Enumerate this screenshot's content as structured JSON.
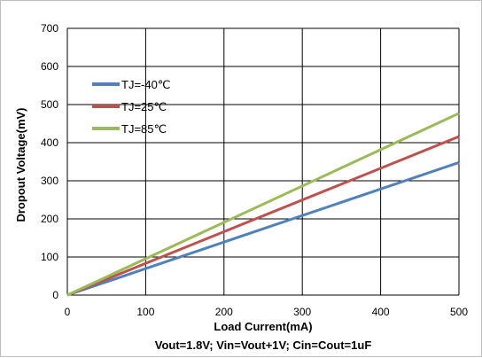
{
  "chart_data": {
    "type": "line",
    "xlabel": "Load Current(mA)",
    "ylabel": "Dropout Voltage(mV)",
    "footnote": "Vout=1.8V; Vin=Vout+1V; Cin=Cout=1uF",
    "xlim": [
      0,
      500
    ],
    "ylim": [
      0,
      700
    ],
    "x_ticks": [
      "0",
      "100",
      "200",
      "300",
      "400",
      "500"
    ],
    "y_ticks": [
      "0",
      "100",
      "200",
      "300",
      "400",
      "500",
      "600",
      "700"
    ],
    "grid": "horizontal-and-vertical",
    "legend_position": "top-left",
    "x": [
      0,
      500
    ],
    "series": [
      {
        "name": "TJ=-40℃",
        "color": "#4f81bd",
        "values": [
          0,
          348
        ]
      },
      {
        "name": "TJ=25℃",
        "color": "#c0504d",
        "values": [
          0,
          416
        ]
      },
      {
        "name": "TJ=85℃",
        "color": "#9bbb59",
        "values": [
          0,
          477
        ]
      }
    ]
  }
}
